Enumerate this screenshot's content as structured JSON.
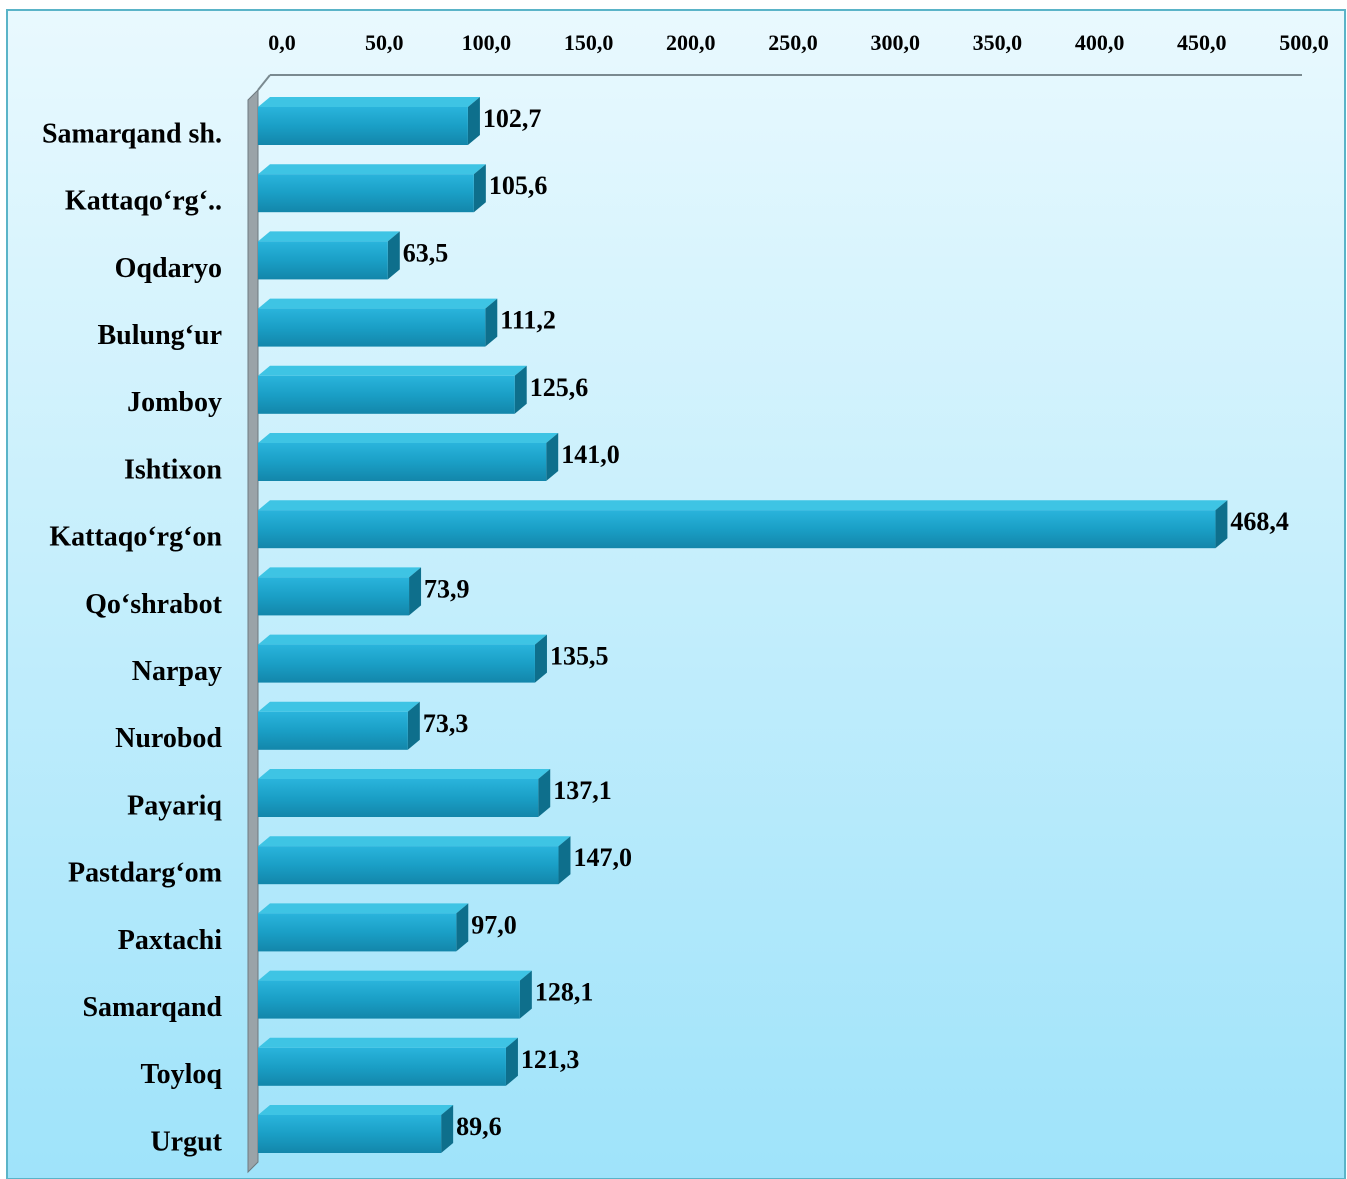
{
  "chart_data": {
    "type": "bar",
    "orientation": "horizontal",
    "categories": [
      "Samarqand sh.",
      "Kattaqo‘rg‘..",
      "Oqdaryo",
      "Bulung‘ur",
      "Jomboy",
      "Ishtixon",
      "Kattaqo‘rg‘on",
      "Qo‘shrabot",
      "Narpay",
      "Nurobod",
      "Payariq",
      "Pastdarg‘om",
      "Paxtachi",
      "Samarqand",
      "Toyloq",
      "Urgut"
    ],
    "values": [
      102.7,
      105.6,
      63.5,
      111.2,
      125.6,
      141.0,
      468.4,
      73.9,
      135.5,
      73.3,
      137.1,
      147.0,
      97.0,
      128.1,
      121.3,
      89.6
    ],
    "value_labels": [
      "102,7",
      "105,6",
      "63,5",
      "111,2",
      "125,6",
      "141,0",
      "468,4",
      "73,9",
      "135,5",
      "73,3",
      "137,1",
      "147,0",
      "97,0",
      "128,1",
      "121,3",
      "89,6"
    ],
    "color": "#1a9fc6",
    "xlim": [
      0,
      500
    ],
    "xticks": [
      {
        "value": 0,
        "label": "0,0"
      },
      {
        "value": 50,
        "label": "50,0"
      },
      {
        "value": 100,
        "label": "100,0"
      },
      {
        "value": 150,
        "label": "150,0"
      },
      {
        "value": 200,
        "label": "200,0"
      },
      {
        "value": 250,
        "label": "250,0"
      },
      {
        "value": 300,
        "label": "300,0"
      },
      {
        "value": 350,
        "label": "350,0"
      },
      {
        "value": 400,
        "label": "400,0"
      },
      {
        "value": 450,
        "label": "450,0"
      },
      {
        "value": 500,
        "label": "500,0"
      }
    ],
    "grid": false
  }
}
